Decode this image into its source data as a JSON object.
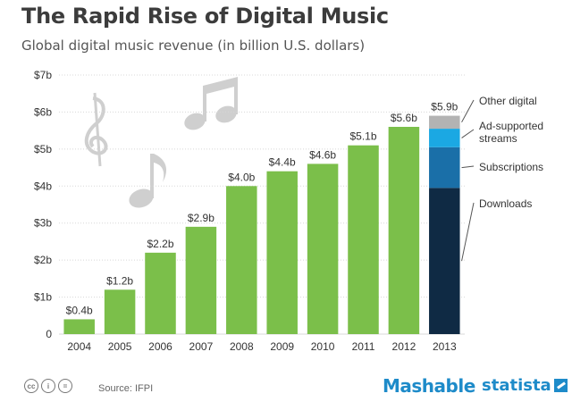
{
  "title": "The Rapid Rise of Digital Music",
  "subtitle": "Global digital music revenue (in billion U.S. dollars)",
  "source_label": "Source:",
  "source_value": "IFPI",
  "cc_icons": [
    "cc-icon",
    "by-icon",
    "equal-icon"
  ],
  "cc_glyphs": [
    "cc",
    "i",
    "="
  ],
  "brands": {
    "mashable": "Mashable",
    "statista": "statista"
  },
  "decorations": [
    "treble-clef-icon",
    "beamed-notes-icon",
    "eighth-note-icon"
  ],
  "colors": {
    "bar": "#7bbf4a",
    "grid": "#d8d8d8",
    "downloads": "#0f2a44",
    "subscriptions": "#1a6fa8",
    "ad_supported": "#1ba8e3",
    "other_digital": "#b3b3b3",
    "brand": "#1e8bc9",
    "note": "#cfcfcf"
  },
  "chart_data": {
    "type": "bar",
    "categories": [
      "2004",
      "2005",
      "2006",
      "2007",
      "2008",
      "2009",
      "2010",
      "2011",
      "2012",
      "2013"
    ],
    "values": [
      0.4,
      1.2,
      2.2,
      2.9,
      4.0,
      4.4,
      4.6,
      5.1,
      5.6,
      5.9
    ],
    "value_labels": [
      "$0.4b",
      "$1.2b",
      "$2.2b",
      "$2.9b",
      "$4.0b",
      "$4.4b",
      "$4.6b",
      "$5.1b",
      "$5.6b",
      "$5.9b"
    ],
    "stacked_2013": [
      {
        "name": "Downloads",
        "value": 3.95
      },
      {
        "name": "Subscriptions",
        "value": 1.1
      },
      {
        "name": "Ad-supported streams",
        "value": 0.5
      },
      {
        "name": "Other digital",
        "value": 0.35
      }
    ],
    "y_ticks": [
      0,
      1,
      2,
      3,
      4,
      5,
      6,
      7
    ],
    "y_tick_labels": [
      "0",
      "$1b",
      "$2b",
      "$3b",
      "$4b",
      "$5b",
      "$6b",
      "$7b"
    ],
    "ylim": [
      0,
      7
    ],
    "xlabel": "",
    "ylabel": "",
    "grid": true,
    "legend_placement": "right"
  }
}
